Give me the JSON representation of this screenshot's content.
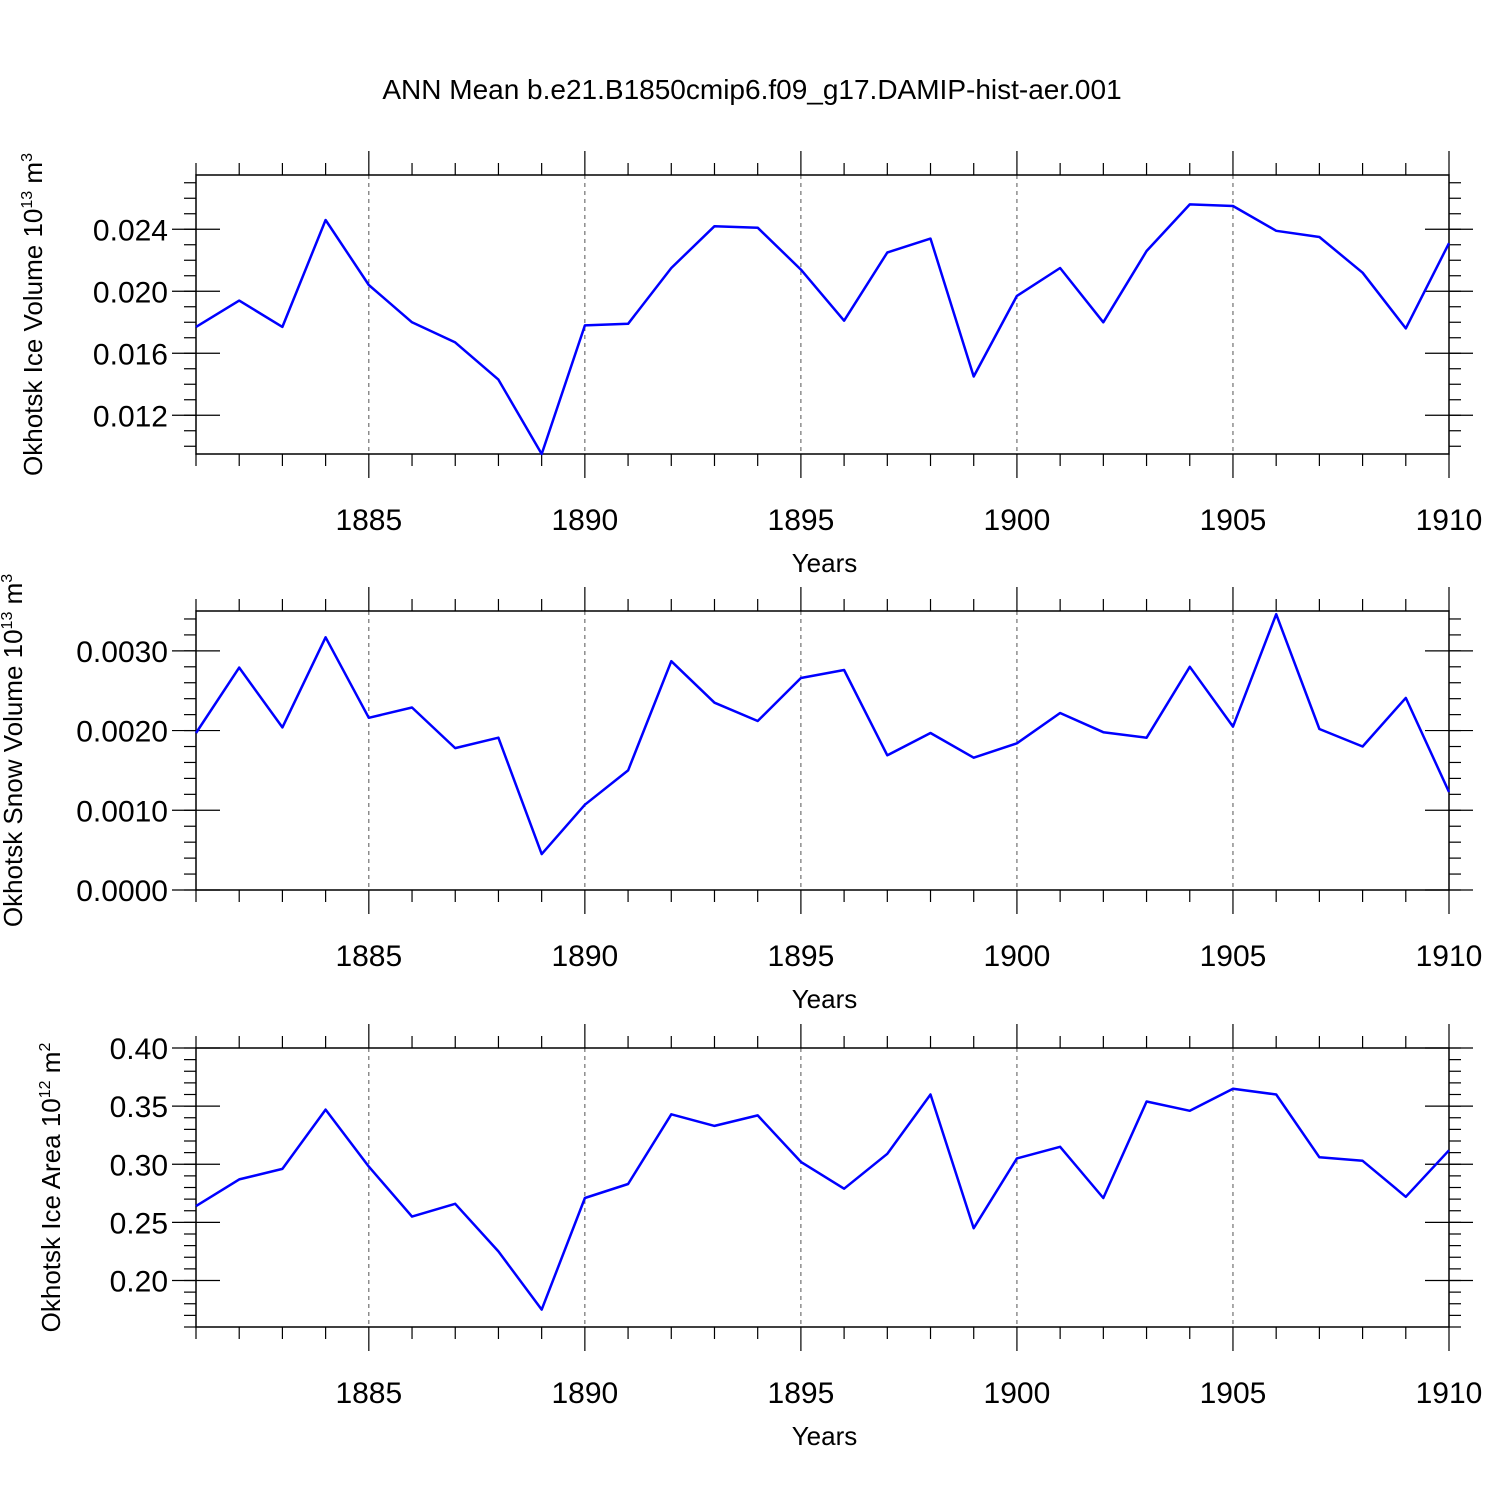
{
  "title": "ANN Mean b.e21.B1850cmip6.f09_g17.DAMIP-hist-aer.001",
  "colors": {
    "line": "#0000ff",
    "axis": "#000000",
    "grid": "#555555"
  },
  "chart_data": [
    {
      "type": "line",
      "xlabel": "Years",
      "ylabel": {
        "main": "Okhotsk Ice Volume 10",
        "sup": "13",
        "unit": " m",
        "unitsup": "3"
      },
      "xlim": [
        1881,
        1910
      ],
      "ylim": [
        0.0095,
        0.0275
      ],
      "xticks": [
        1885,
        1890,
        1895,
        1900,
        1905,
        1910
      ],
      "yticks": [
        0.012,
        0.016,
        0.02,
        0.024
      ],
      "ytick_labels": [
        "0.012",
        "0.016",
        "0.020",
        "0.024"
      ],
      "yminor": 0.001,
      "x": [
        1881,
        1882,
        1883,
        1884,
        1885,
        1886,
        1887,
        1888,
        1889,
        1890,
        1891,
        1892,
        1893,
        1894,
        1895,
        1896,
        1897,
        1898,
        1899,
        1900,
        1901,
        1902,
        1903,
        1904,
        1905,
        1906,
        1907,
        1908,
        1909,
        1910
      ],
      "values": [
        0.0177,
        0.0194,
        0.0177,
        0.0246,
        0.0204,
        0.018,
        0.0167,
        0.0143,
        0.0095,
        0.0178,
        0.0179,
        0.0215,
        0.0242,
        0.0241,
        0.0214,
        0.0181,
        0.0225,
        0.0234,
        0.0145,
        0.0197,
        0.0215,
        0.018,
        0.0226,
        0.0256,
        0.0255,
        0.0239,
        0.0235,
        0.0212,
        0.0176,
        0.0231
      ]
    },
    {
      "type": "line",
      "xlabel": "Years",
      "ylabel": {
        "main": "Okhotsk Snow Volume 10",
        "sup": "13",
        "unit": " m",
        "unitsup": "3"
      },
      "xlim": [
        1881,
        1910
      ],
      "ylim": [
        0.0,
        0.0035
      ],
      "xticks": [
        1885,
        1890,
        1895,
        1900,
        1905,
        1910
      ],
      "yticks": [
        0.0,
        0.001,
        0.002,
        0.003
      ],
      "ytick_labels": [
        "0.0000",
        "0.0010",
        "0.0020",
        "0.0030"
      ],
      "yminor": 0.0002,
      "x": [
        1881,
        1882,
        1883,
        1884,
        1885,
        1886,
        1887,
        1888,
        1889,
        1890,
        1891,
        1892,
        1893,
        1894,
        1895,
        1896,
        1897,
        1898,
        1899,
        1900,
        1901,
        1902,
        1903,
        1904,
        1905,
        1906,
        1907,
        1908,
        1909,
        1910
      ],
      "values": [
        0.00197,
        0.00279,
        0.00204,
        0.00317,
        0.00216,
        0.00229,
        0.00178,
        0.00191,
        0.00045,
        0.00107,
        0.0015,
        0.00287,
        0.00235,
        0.00212,
        0.00266,
        0.00276,
        0.00169,
        0.00197,
        0.00166,
        0.00184,
        0.00222,
        0.00198,
        0.00191,
        0.0028,
        0.00205,
        0.00346,
        0.00202,
        0.0018,
        0.00241,
        0.00123
      ]
    },
    {
      "type": "line",
      "xlabel": "Years",
      "ylabel": {
        "main": "Okhotsk Ice Area 10",
        "sup": "12",
        "unit": " m",
        "unitsup": "2"
      },
      "xlim": [
        1881,
        1910
      ],
      "ylim": [
        0.16,
        0.4
      ],
      "xticks": [
        1885,
        1890,
        1895,
        1900,
        1905,
        1910
      ],
      "yticks": [
        0.2,
        0.25,
        0.3,
        0.35,
        0.4
      ],
      "ytick_labels": [
        "0.20",
        "0.25",
        "0.30",
        "0.35",
        "0.40"
      ],
      "yminor": 0.01,
      "x": [
        1881,
        1882,
        1883,
        1884,
        1885,
        1886,
        1887,
        1888,
        1889,
        1890,
        1891,
        1892,
        1893,
        1894,
        1895,
        1896,
        1897,
        1898,
        1899,
        1900,
        1901,
        1902,
        1903,
        1904,
        1905,
        1906,
        1907,
        1908,
        1909,
        1910
      ],
      "values": [
        0.264,
        0.287,
        0.296,
        0.347,
        0.298,
        0.255,
        0.266,
        0.225,
        0.175,
        0.271,
        0.283,
        0.343,
        0.333,
        0.342,
        0.302,
        0.279,
        0.309,
        0.36,
        0.245,
        0.305,
        0.315,
        0.271,
        0.354,
        0.346,
        0.365,
        0.36,
        0.306,
        0.303,
        0.272,
        0.312
      ]
    }
  ]
}
